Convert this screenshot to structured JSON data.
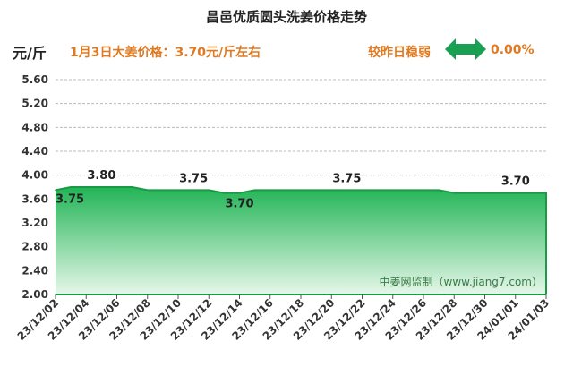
{
  "title": "昌邑优质圆头洗姜价格走势",
  "unit_label": "元/斤",
  "headline": "1月3日大姜价格：3.70元/斤左右",
  "trend_label": "较昨日稳弱",
  "change_value": "0.00%",
  "colors": {
    "accent": "#e07a22",
    "arrow": "#1aa052",
    "area_top": "#22b456",
    "area_bottom": "#e6f7e9",
    "line": "#1a9a45"
  },
  "chart_data": {
    "type": "area",
    "title": "昌邑优质圆头洗姜价格走势",
    "ylabel": "元/斤",
    "ylim": [
      2.0,
      5.6
    ],
    "yticks": [
      "2.00",
      "2.40",
      "2.80",
      "3.20",
      "3.60",
      "4.00",
      "4.40",
      "4.80",
      "5.20",
      "5.60"
    ],
    "x_ticks": [
      "23/12/02",
      "23/12/04",
      "23/12/06",
      "23/12/08",
      "23/12/10",
      "23/12/12",
      "23/12/14",
      "23/12/16",
      "23/12/18",
      "23/12/20",
      "23/12/22",
      "23/12/24",
      "23/12/26",
      "23/12/28",
      "23/12/30",
      "24/01/01",
      "24/01/03"
    ],
    "x": [
      "23/12/02",
      "23/12/03",
      "23/12/04",
      "23/12/05",
      "23/12/06",
      "23/12/07",
      "23/12/08",
      "23/12/09",
      "23/12/10",
      "23/12/11",
      "23/12/12",
      "23/12/13",
      "23/12/14",
      "23/12/15",
      "23/12/16",
      "23/12/17",
      "23/12/18",
      "23/12/19",
      "23/12/20",
      "23/12/21",
      "23/12/22",
      "23/12/23",
      "23/12/24",
      "23/12/25",
      "23/12/26",
      "23/12/27",
      "23/12/28",
      "23/12/29",
      "23/12/30",
      "23/12/31",
      "24/01/01",
      "24/01/02",
      "24/01/03"
    ],
    "values": [
      3.75,
      3.8,
      3.8,
      3.8,
      3.8,
      3.8,
      3.75,
      3.75,
      3.75,
      3.75,
      3.75,
      3.7,
      3.7,
      3.75,
      3.75,
      3.75,
      3.75,
      3.75,
      3.75,
      3.75,
      3.75,
      3.75,
      3.75,
      3.75,
      3.75,
      3.75,
      3.7,
      3.7,
      3.7,
      3.7,
      3.7,
      3.7,
      3.7
    ],
    "data_labels": [
      {
        "index": 0,
        "text": "3.75"
      },
      {
        "index": 3,
        "text": "3.80"
      },
      {
        "index": 9,
        "text": "3.75"
      },
      {
        "index": 12,
        "text": "3.70"
      },
      {
        "index": 19,
        "text": "3.75"
      },
      {
        "index": 30,
        "text": "3.70"
      }
    ],
    "watermark": "中姜网监制（www.jiang7.com）",
    "grid": true,
    "grid_axis": "y"
  }
}
